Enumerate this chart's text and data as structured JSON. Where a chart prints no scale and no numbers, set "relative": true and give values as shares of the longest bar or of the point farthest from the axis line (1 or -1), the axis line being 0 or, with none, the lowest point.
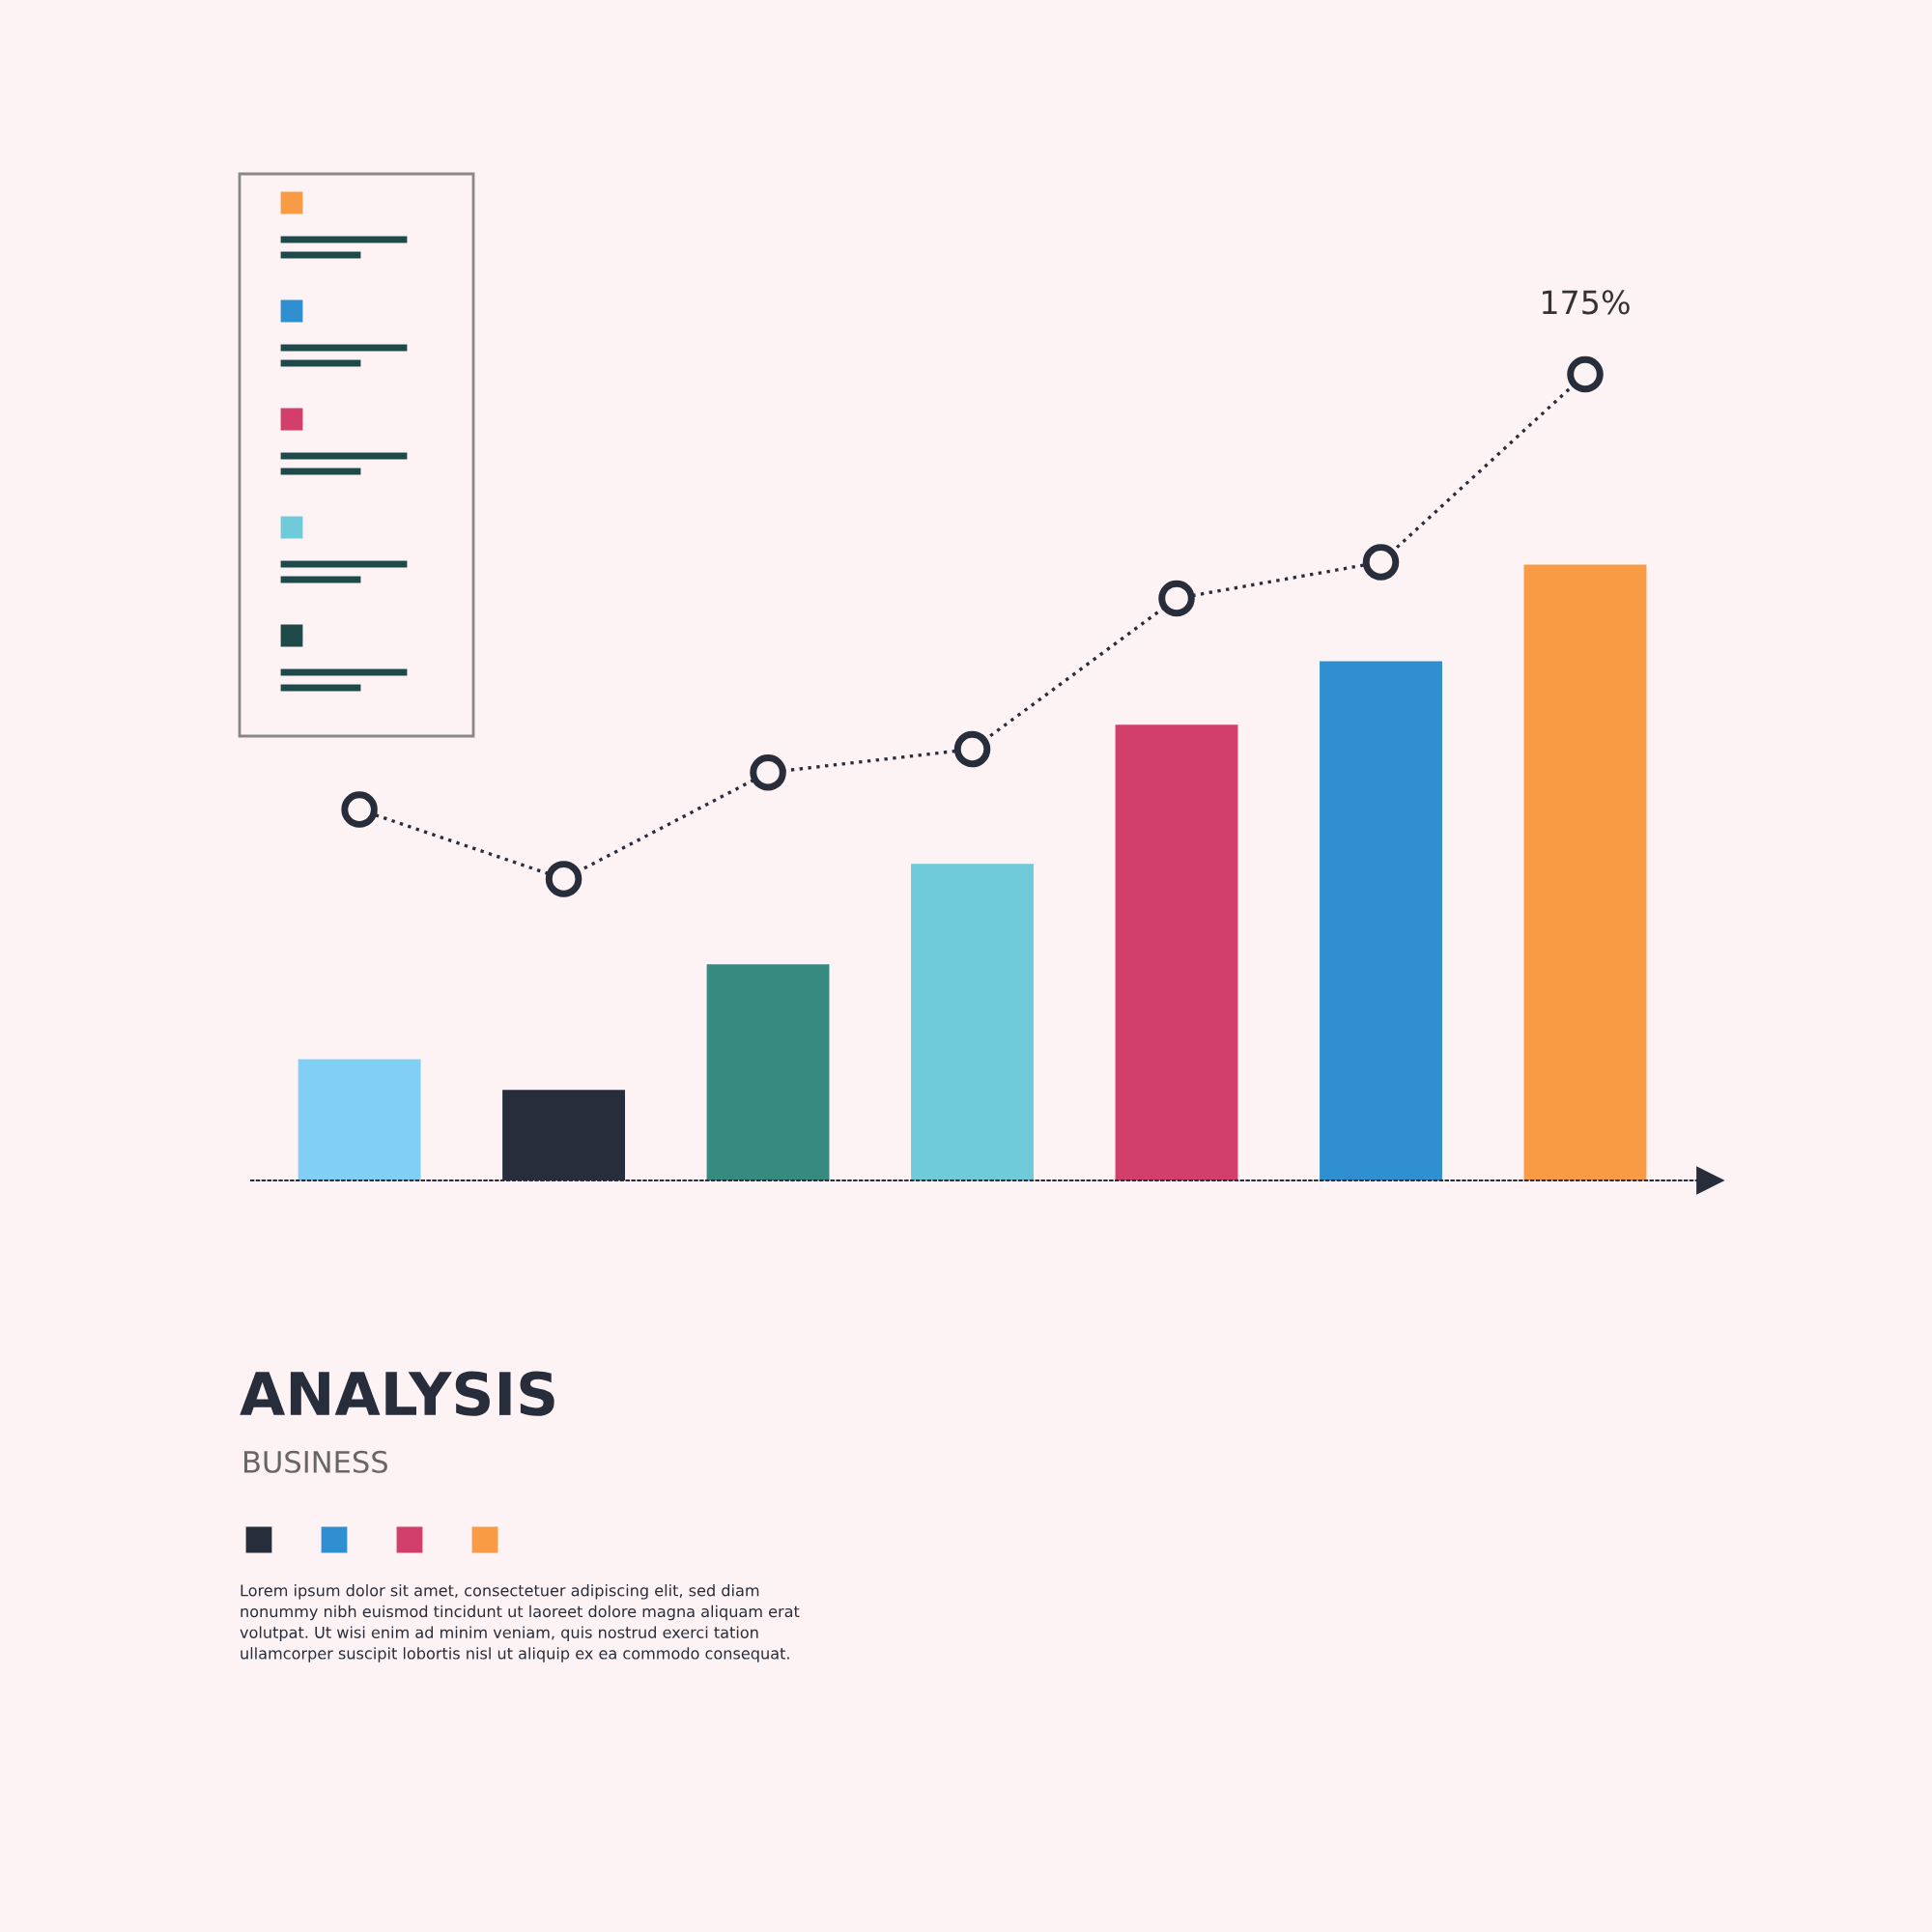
{
  "chart_data": [
    {
      "type": "bar",
      "title": "ANALYSIS",
      "subtitle": "BUSINESS",
      "relative": true,
      "grid": false,
      "legend": false,
      "categories": [
        null,
        null,
        null,
        null,
        null,
        null,
        null
      ],
      "colors": [
        "#82cff5",
        "#272d3a",
        "#368a80",
        "#6fcbd9",
        "#d13f6a",
        "#2f8fd0",
        "#f99b45"
      ],
      "values": [
        0.197,
        0.147,
        0.351,
        0.514,
        0.74,
        0.843,
        1
      ],
      "annotations": [
        "Lorem ipsum dolor sit amet, consectetuer adipiscing elit, sed diam\nnonummy nibh euismod tincidunt ut laoreet dolore magna aliquam erat\nvolutpat. Ut wisi enim ad minim veniam, quis nostrud exerci tation\nullamcorper suscipit lobortis nisl ut aliquip ex ea commodo consequat."
      ]
    },
    {
      "type": "line",
      "relative": true,
      "grid": false,
      "legend": false,
      "marker": "circle",
      "line_style": "dotted",
      "categories": [
        null,
        null,
        null,
        null,
        null,
        null,
        null
      ],
      "series": [
        {
          "color": "#272d3a",
          "values": [
            0.46,
            0.374,
            0.506,
            0.535,
            0.722,
            0.767,
            1
          ]
        }
      ],
      "annotations": [
        "175%"
      ]
    }
  ]
}
